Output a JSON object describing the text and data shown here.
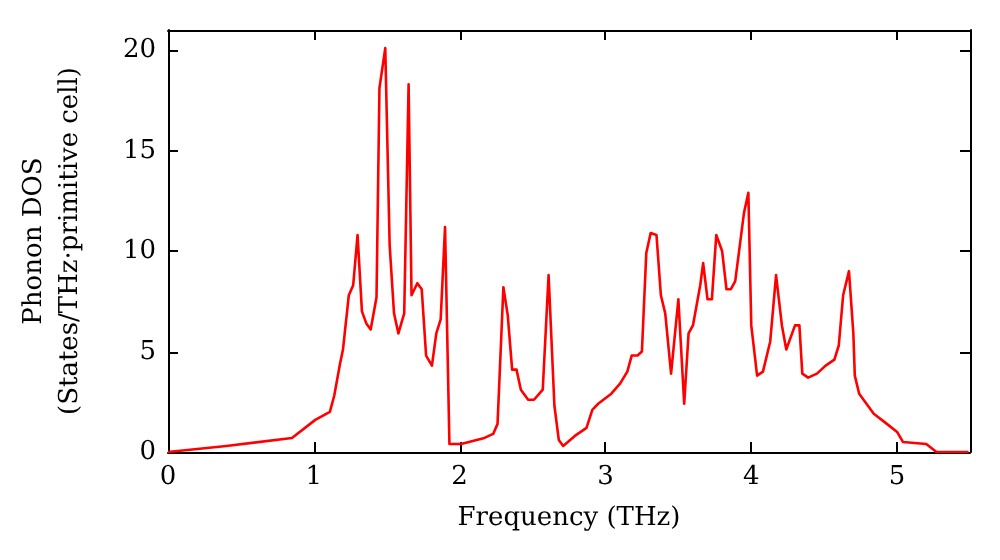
{
  "chart_data": {
    "type": "line",
    "xlabel": "Frequency (THz)",
    "ylabel": "Phonon DOS\n(States/THz·primitive cell)",
    "xlim": [
      0,
      5.5
    ],
    "xticks": [
      0,
      1,
      2,
      3,
      4,
      5
    ],
    "ylim": [
      0,
      21
    ],
    "yticks": [
      0,
      5,
      10,
      15,
      20
    ],
    "marker": "none",
    "line_style": "solid",
    "series": [
      {
        "color": "#ff0000",
        "x": [
          0,
          0.4,
          0.85,
          1.01,
          1.11,
          1.14,
          1.18,
          1.2,
          1.24,
          1.27,
          1.3,
          1.33,
          1.36,
          1.39,
          1.43,
          1.45,
          1.49,
          1.52,
          1.55,
          1.58,
          1.62,
          1.65,
          1.67,
          1.71,
          1.74,
          1.77,
          1.81,
          1.84,
          1.87,
          1.9,
          1.93,
          2.01,
          2.17,
          2.23,
          2.26,
          2.3,
          2.33,
          2.36,
          2.39,
          2.42,
          2.47,
          2.51,
          2.57,
          2.61,
          2.65,
          2.68,
          2.71,
          2.79,
          2.87,
          2.91,
          2.95,
          3.04,
          3.1,
          3.15,
          3.18,
          3.22,
          3.25,
          3.28,
          3.31,
          3.35,
          3.38,
          3.41,
          3.45,
          3.5,
          3.54,
          3.57,
          3.6,
          3.65,
          3.67,
          3.7,
          3.73,
          3.76,
          3.8,
          3.83,
          3.86,
          3.89,
          3.95,
          3.98,
          4.0,
          4.04,
          4.08,
          4.13,
          4.17,
          4.21,
          4.24,
          4.3,
          4.33,
          4.35,
          4.39,
          4.45,
          4.51,
          4.57,
          4.6,
          4.63,
          4.67,
          4.7,
          4.71,
          4.74,
          4.84,
          4.93,
          5.0,
          5.04,
          5.2,
          5.27,
          5.49
        ],
        "values": [
          0,
          0.3,
          0.7,
          1.6,
          2.0,
          2.8,
          4.4,
          5.1,
          7.8,
          8.3,
          10.8,
          7.0,
          6.4,
          6.1,
          7.7,
          18.1,
          20.1,
          10.3,
          6.9,
          5.9,
          6.9,
          18.3,
          7.8,
          8.4,
          8.1,
          4.8,
          4.3,
          5.9,
          6.6,
          11.2,
          0.4,
          0.4,
          0.7,
          0.9,
          1.4,
          8.2,
          6.8,
          4.1,
          4.1,
          3.1,
          2.6,
          2.6,
          3.1,
          8.8,
          2.3,
          0.6,
          0.3,
          0.8,
          1.2,
          2.1,
          2.4,
          2.9,
          3.4,
          4.0,
          4.8,
          4.8,
          5.0,
          9.9,
          10.9,
          10.8,
          7.8,
          6.9,
          3.9,
          7.6,
          2.4,
          5.9,
          6.3,
          8.3,
          9.4,
          7.6,
          7.6,
          10.8,
          10.0,
          8.1,
          8.1,
          8.5,
          11.9,
          12.9,
          6.3,
          3.8,
          4.0,
          5.5,
          8.8,
          6.3,
          5.1,
          6.3,
          6.3,
          3.9,
          3.7,
          3.9,
          4.3,
          4.6,
          5.3,
          7.8,
          9.0,
          5.9,
          3.8,
          2.9,
          1.9,
          1.4,
          1.0,
          0.5,
          0.4,
          0,
          0
        ]
      }
    ]
  }
}
